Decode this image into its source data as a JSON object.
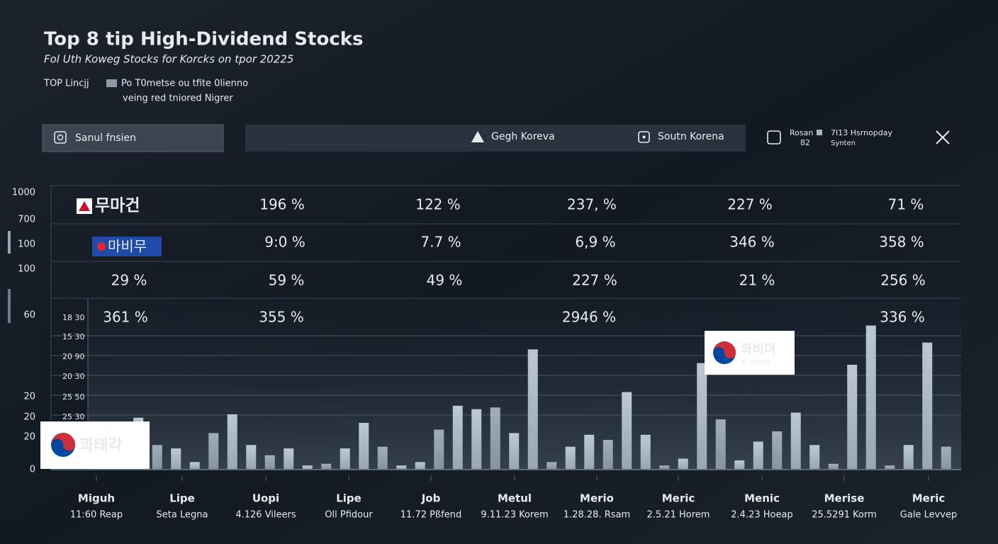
{
  "header": {
    "title": "Top 8 tip High-Dividend Stocks",
    "subtitle": "Fol Uth Koweg Stocks for Korcks on tpor 20225",
    "legend_label": "TOP Lincjj",
    "legend_text": "Po T0metse ou tfite 0lienno",
    "legend_sub": "veing red tniored Nigrer"
  },
  "toolbar": {
    "search": "Sanul fnsien",
    "tab1": "Gegh Koreva",
    "tab2": "Soutn Korena",
    "info_label": "Rosan",
    "info_value": "82",
    "info_title": "7I13 Hsrnopday",
    "info_sub": "Synten"
  },
  "y_labels": [
    "1000",
    "700",
    "100",
    "100",
    "60",
    "20",
    "20",
    "20",
    "0"
  ],
  "inner_labels": [
    "18 30",
    "15 30",
    "20 90",
    "20 30",
    "25 50",
    "25 30"
  ],
  "logos": {
    "row1": "무마건",
    "row2": "마비무",
    "bottom": "콰태각",
    "right": "콰비뎌",
    "right_sub": "BF BBHRA"
  },
  "rows": [
    [
      "196 %",
      "122 %",
      "237, %",
      "227 %",
      "71 %"
    ],
    [
      "9:0 %",
      "7.7 %",
      "6,9 %",
      "346 %",
      "358 %"
    ],
    [
      "29 %",
      "59 %",
      "49 %",
      "227 %",
      "21 %",
      "256 %"
    ],
    [
      "361 %",
      "355 %",
      "2946 %",
      "336 %"
    ]
  ],
  "bars": {
    "ylim": [
      0,
      100
    ],
    "values": [
      30,
      14,
      12,
      4,
      21,
      32,
      14,
      8,
      12,
      2,
      3,
      12,
      27,
      13,
      2,
      4,
      23,
      37,
      35,
      36,
      21,
      70,
      4,
      13,
      20,
      17,
      45,
      20,
      2,
      6,
      62,
      29,
      5,
      16,
      22,
      33,
      14,
      3,
      61,
      84,
      2,
      14,
      74,
      13
    ]
  },
  "columns": [
    {
      "name": "Miguh",
      "sub": "11:60 Reap"
    },
    {
      "name": "Lipe",
      "sub": "Seta Legna"
    },
    {
      "name": "Uopi",
      "sub": "4.126 Vileers"
    },
    {
      "name": "Lipe",
      "sub": "Oll Pfidour"
    },
    {
      "name": "Job",
      "sub": "11.72 Pßfend"
    },
    {
      "name": "Metul",
      "sub": "9.11.23 Korem"
    },
    {
      "name": "Merio",
      "sub": "1.28.28. Rsam"
    },
    {
      "name": "Meric",
      "sub": "2.5.21 Horem"
    },
    {
      "name": "Menic",
      "sub": "2.4.23 Hoeap"
    },
    {
      "name": "Merise",
      "sub": "25.5291 Korm"
    },
    {
      "name": "Meric",
      "sub": "Gale Levvep"
    }
  ]
}
